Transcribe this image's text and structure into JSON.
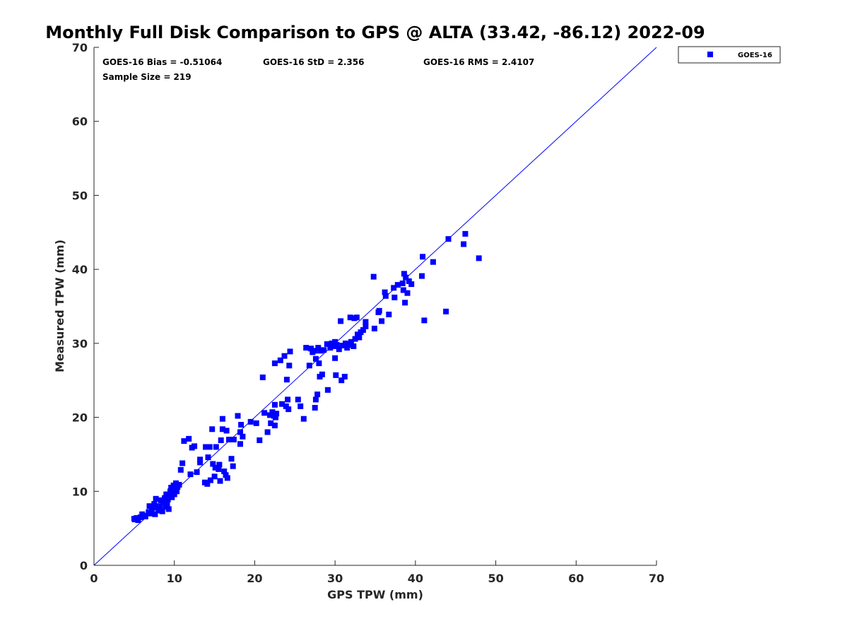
{
  "chart_data": {
    "type": "scatter",
    "title": "Monthly Full Disk Comparison to GPS @ ALTA (33.42, -86.12) 2022-09",
    "xlabel": "GPS TPW (mm)",
    "ylabel": "Measured TPW (mm)",
    "xlim": [
      0,
      70
    ],
    "ylim": [
      0,
      70
    ],
    "xticks": [
      0,
      10,
      20,
      30,
      40,
      50,
      60,
      70
    ],
    "yticks": [
      0,
      10,
      20,
      30,
      40,
      50,
      60,
      70
    ],
    "grid": false,
    "legend_position": "outside-top-right",
    "reference_line": {
      "from": [
        0,
        0
      ],
      "to": [
        70,
        70
      ],
      "color": "#0000ff"
    },
    "annotations": [
      "GOES-16 Bias = -0.51064",
      "GOES-16 StD = 2.356",
      "GOES-16 RMS = 2.4107",
      "Sample Size = 219"
    ],
    "series": [
      {
        "name": "GOES-16",
        "color": "#0000ff",
        "marker": "square",
        "points": [
          [
            5.0,
            6.3
          ],
          [
            5.1,
            6.2
          ],
          [
            5.3,
            6.4
          ],
          [
            5.5,
            6.1
          ],
          [
            5.8,
            6.5
          ],
          [
            6.0,
            6.9
          ],
          [
            6.2,
            6.7
          ],
          [
            6.4,
            6.6
          ],
          [
            6.8,
            7.2
          ],
          [
            6.9,
            8.0
          ],
          [
            7.0,
            7.0
          ],
          [
            7.2,
            7.5
          ],
          [
            7.4,
            7.8
          ],
          [
            7.5,
            8.3
          ],
          [
            7.6,
            6.9
          ],
          [
            7.7,
            9.0
          ],
          [
            7.8,
            7.9
          ],
          [
            8.0,
            7.4
          ],
          [
            8.2,
            8.0
          ],
          [
            8.3,
            8.8
          ],
          [
            8.5,
            7.3
          ],
          [
            8.6,
            8.6
          ],
          [
            8.8,
            9.1
          ],
          [
            8.9,
            7.9
          ],
          [
            9.0,
            9.6
          ],
          [
            9.1,
            8.2
          ],
          [
            9.2,
            8.9
          ],
          [
            9.3,
            7.6
          ],
          [
            9.4,
            9.4
          ],
          [
            9.5,
            10.0
          ],
          [
            9.6,
            10.5
          ],
          [
            9.7,
            9.2
          ],
          [
            9.8,
            10.2
          ],
          [
            9.9,
            10.8
          ],
          [
            10.0,
            9.6
          ],
          [
            10.1,
            10.4
          ],
          [
            10.2,
            11.1
          ],
          [
            10.3,
            10.0
          ],
          [
            10.4,
            10.6
          ],
          [
            10.6,
            10.9
          ],
          [
            10.8,
            12.9
          ],
          [
            11.0,
            13.8
          ],
          [
            11.2,
            16.8
          ],
          [
            11.8,
            17.1
          ],
          [
            12.0,
            12.3
          ],
          [
            12.2,
            15.9
          ],
          [
            12.5,
            16.1
          ],
          [
            12.8,
            12.6
          ],
          [
            13.2,
            14.3
          ],
          [
            13.2,
            13.9
          ],
          [
            13.8,
            11.2
          ],
          [
            13.9,
            16.0
          ],
          [
            14.1,
            11.0
          ],
          [
            14.2,
            14.6
          ],
          [
            14.4,
            16.0
          ],
          [
            14.5,
            11.5
          ],
          [
            14.7,
            18.4
          ],
          [
            14.8,
            13.7
          ],
          [
            15.0,
            12.0
          ],
          [
            15.1,
            13.2
          ],
          [
            15.2,
            16.0
          ],
          [
            15.5,
            13.0
          ],
          [
            15.6,
            13.6
          ],
          [
            15.7,
            11.4
          ],
          [
            15.8,
            16.9
          ],
          [
            16.0,
            18.4
          ],
          [
            16.0,
            19.8
          ],
          [
            16.2,
            12.7
          ],
          [
            16.4,
            12.2
          ],
          [
            16.5,
            18.2
          ],
          [
            16.6,
            11.8
          ],
          [
            16.8,
            17.0
          ],
          [
            17.1,
            14.4
          ],
          [
            17.3,
            13.4
          ],
          [
            17.4,
            17.0
          ],
          [
            17.9,
            20.2
          ],
          [
            18.2,
            18.0
          ],
          [
            18.2,
            16.4
          ],
          [
            18.3,
            19.0
          ],
          [
            18.5,
            17.4
          ],
          [
            19.5,
            19.4
          ],
          [
            20.2,
            19.2
          ],
          [
            20.6,
            16.9
          ],
          [
            21.2,
            20.6
          ],
          [
            21.6,
            18.0
          ],
          [
            21.9,
            20.3
          ],
          [
            22.0,
            19.2
          ],
          [
            22.2,
            20.7
          ],
          [
            22.4,
            20.2
          ],
          [
            22.5,
            21.7
          ],
          [
            22.5,
            18.9
          ],
          [
            22.6,
            20.0
          ],
          [
            22.7,
            20.5
          ],
          [
            21.0,
            25.4
          ],
          [
            22.5,
            27.3
          ],
          [
            23.2,
            27.7
          ],
          [
            23.4,
            21.8
          ],
          [
            23.7,
            28.3
          ],
          [
            23.9,
            21.5
          ],
          [
            24.0,
            25.1
          ],
          [
            24.1,
            22.4
          ],
          [
            24.2,
            21.1
          ],
          [
            24.3,
            27.0
          ],
          [
            24.4,
            28.9
          ],
          [
            25.4,
            22.4
          ],
          [
            25.7,
            21.5
          ],
          [
            26.1,
            19.8
          ],
          [
            26.4,
            29.4
          ],
          [
            26.8,
            27.0
          ],
          [
            27.0,
            29.3
          ],
          [
            27.2,
            28.8
          ],
          [
            27.5,
            29.0
          ],
          [
            27.5,
            21.3
          ],
          [
            27.6,
            22.4
          ],
          [
            27.6,
            27.9
          ],
          [
            27.8,
            23.1
          ],
          [
            27.9,
            29.4
          ],
          [
            28.0,
            27.3
          ],
          [
            28.1,
            25.5
          ],
          [
            28.2,
            29.0
          ],
          [
            28.4,
            25.8
          ],
          [
            28.6,
            29.1
          ],
          [
            29.0,
            29.9
          ],
          [
            29.1,
            23.7
          ],
          [
            29.4,
            29.4
          ],
          [
            29.6,
            30.0
          ],
          [
            29.9,
            29.6
          ],
          [
            30.0,
            28.0
          ],
          [
            30.0,
            30.2
          ],
          [
            30.1,
            25.7
          ],
          [
            30.2,
            29.8
          ],
          [
            30.5,
            29.2
          ],
          [
            30.7,
            33.0
          ],
          [
            30.8,
            25.0
          ],
          [
            30.9,
            29.7
          ],
          [
            31.2,
            25.5
          ],
          [
            31.3,
            30.0
          ],
          [
            31.5,
            29.4
          ],
          [
            31.7,
            29.8
          ],
          [
            31.9,
            33.5
          ],
          [
            32.0,
            30.2
          ],
          [
            32.3,
            29.6
          ],
          [
            32.4,
            33.4
          ],
          [
            32.5,
            30.6
          ],
          [
            32.7,
            33.5
          ],
          [
            32.8,
            31.2
          ],
          [
            33.0,
            30.8
          ],
          [
            33.2,
            31.5
          ],
          [
            33.5,
            31.8
          ],
          [
            33.8,
            32.3
          ],
          [
            33.8,
            32.9
          ],
          [
            34.8,
            39.0
          ],
          [
            34.9,
            32.0
          ],
          [
            35.4,
            34.2
          ],
          [
            35.5,
            34.4
          ],
          [
            35.8,
            33.0
          ],
          [
            36.2,
            36.9
          ],
          [
            36.3,
            36.4
          ],
          [
            36.7,
            33.9
          ],
          [
            37.3,
            37.5
          ],
          [
            37.4,
            36.2
          ],
          [
            37.8,
            37.9
          ],
          [
            38.4,
            38.1
          ],
          [
            38.5,
            37.2
          ],
          [
            38.6,
            39.4
          ],
          [
            38.7,
            35.5
          ],
          [
            38.8,
            38.9
          ],
          [
            39.0,
            36.8
          ],
          [
            39.2,
            38.4
          ],
          [
            39.5,
            38.0
          ],
          [
            40.8,
            39.1
          ],
          [
            40.9,
            41.7
          ],
          [
            41.1,
            33.1
          ],
          [
            42.2,
            41.0
          ],
          [
            43.8,
            34.3
          ],
          [
            44.1,
            44.1
          ],
          [
            46.0,
            43.4
          ],
          [
            46.2,
            44.8
          ],
          [
            47.9,
            41.5
          ]
        ]
      }
    ]
  }
}
